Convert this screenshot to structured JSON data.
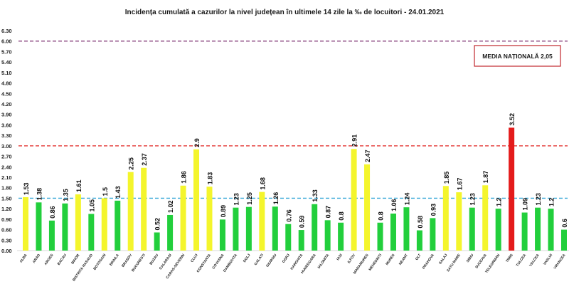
{
  "chart_data": {
    "type": "bar",
    "title": "Incidența cumulată a cazurilor la nivel județean în ultimele 14 zile la ‰ de locuitori - 24.01.2021",
    "xlabel": "",
    "ylabel": "",
    "ylim": [
      0,
      6.3
    ],
    "yticks": [
      "0.00",
      "0.30",
      "0.60",
      "0.90",
      "1.20",
      "1.50",
      "1.80",
      "2.10",
      "2.40",
      "2.70",
      "3.00",
      "3.30",
      "3.60",
      "3.90",
      "4.20",
      "4.50",
      "4.80",
      "5.10",
      "5.40",
      "5.70",
      "6.00",
      "6.30"
    ],
    "categories": [
      "ALBA",
      "ARAD",
      "ARGES",
      "BACAU",
      "BIHOR",
      "BISTRITA NASAUD",
      "BOTOSANI",
      "BRAILA",
      "BRASOV",
      "BUCURESTI",
      "BUZAU",
      "CALARASI",
      "CARAS-SEVERIN",
      "CLUJ",
      "CONSTANTA",
      "COVASNA",
      "DAMBOVITA",
      "DOLJ",
      "GALATI",
      "GIURGIU",
      "GORJ",
      "HARGHITA",
      "HUNEDOARA",
      "IALOMITA",
      "IASI",
      "ILFOV",
      "MARAMURES",
      "MEHEDINTI",
      "MURES",
      "NEAMT",
      "OLT",
      "PRAHOVA",
      "SALAJ",
      "SATU MARE",
      "SIBIU",
      "SUCEAVA",
      "TELEORMAN",
      "TIMIS",
      "TULCEA",
      "VALCEA",
      "VASLUI",
      "VRANCEA"
    ],
    "values": [
      1.53,
      1.38,
      0.86,
      1.35,
      1.61,
      1.05,
      1.5,
      1.43,
      2.25,
      2.37,
      0.52,
      1.02,
      1.86,
      2.9,
      1.83,
      0.89,
      1.23,
      1.25,
      1.68,
      1.26,
      0.76,
      0.59,
      1.33,
      0.87,
      0.8,
      2.91,
      2.47,
      0.8,
      1.06,
      1.24,
      0.58,
      0.93,
      1.85,
      1.67,
      1.23,
      1.87,
      1.2,
      3.52,
      1.09,
      1.23,
      1.2,
      0.6
    ],
    "value_labels": [
      "1.53",
      "1.38",
      "0.86",
      "1.35",
      "1.61",
      "1.05",
      "1.5",
      "1.43",
      "2.25",
      "2.37",
      "0.52",
      "1.02",
      "1.86",
      "2.9",
      "1.83",
      "0.89",
      "1.23",
      "1.25",
      "1.68",
      "1.26",
      "0.76",
      "0.59",
      "1.33",
      "0.87",
      "0.8",
      "2.91",
      "2.47",
      "0.8",
      "1.06",
      "1.24",
      "0.58",
      "0.93",
      "1.85",
      "1.67",
      "1.23",
      "1.87",
      "1.2",
      "3.52",
      "1.09",
      "1.23",
      "1.2",
      "0.6"
    ],
    "thresholds": [
      {
        "value": 6.0,
        "color": "#7b2d6e",
        "style": "dashed"
      },
      {
        "value": 3.0,
        "color": "#e0201f",
        "style": "dashed"
      },
      {
        "value": 1.5,
        "color": "#38a8d8",
        "style": "dashed"
      }
    ],
    "color_rules": {
      "green_below": 1.5,
      "yellow_from": 1.5,
      "red_from": 3.0
    },
    "colors": {
      "green": "#22cf3c",
      "yellow": "#f4f52c",
      "red": "#e41b1b",
      "gridline": "#d9d9d9"
    },
    "annotation": {
      "text": "MEDIA NAȚIONALĂ  2,05",
      "border_color": "#c0272d"
    },
    "grid": false,
    "legend": "none"
  }
}
